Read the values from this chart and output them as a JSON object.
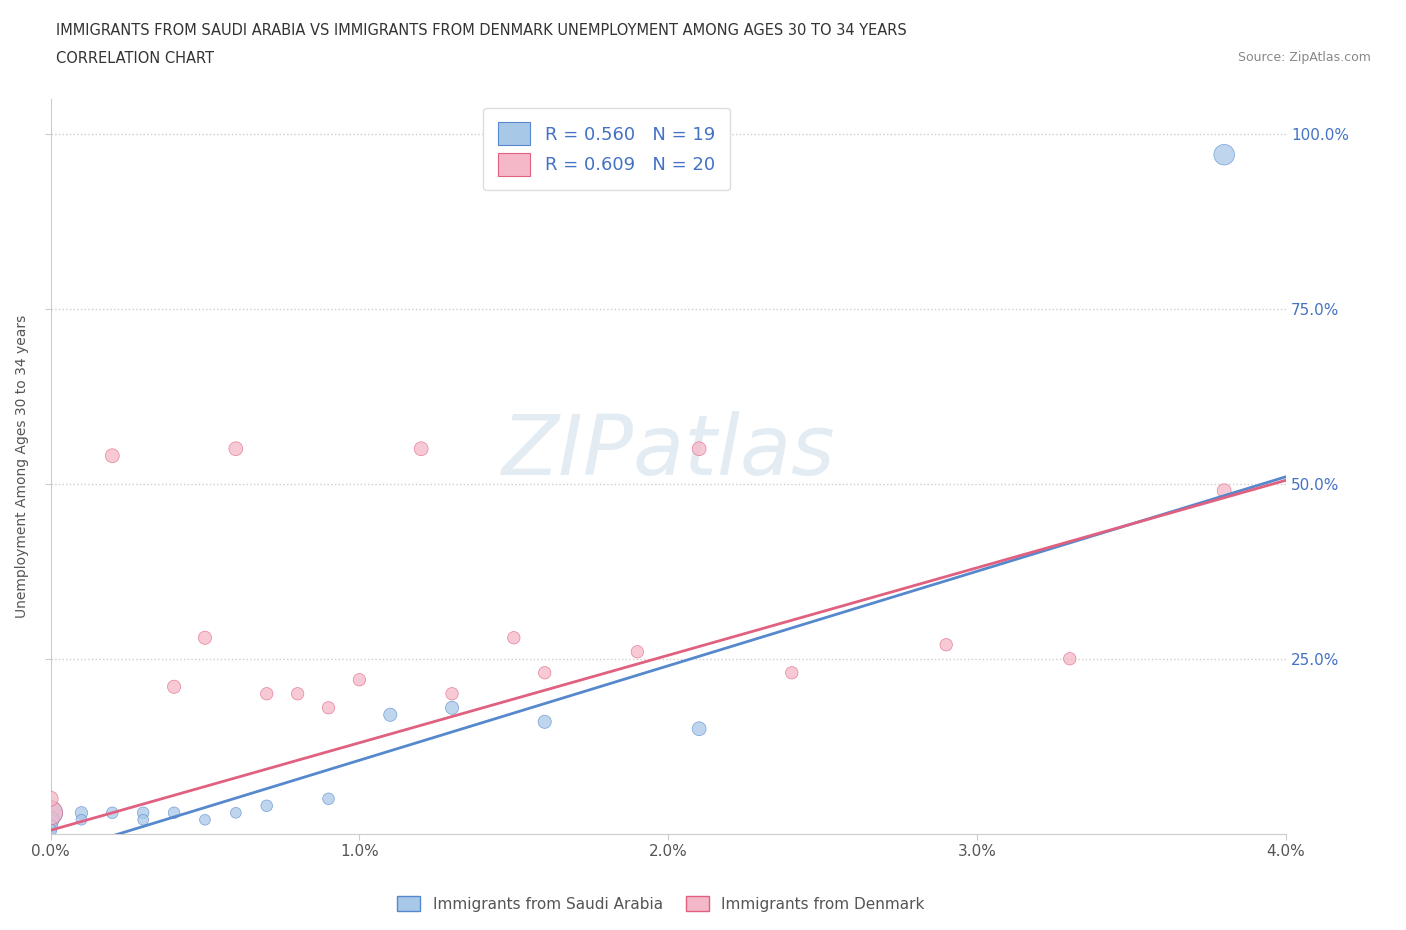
{
  "title_line1": "IMMIGRANTS FROM SAUDI ARABIA VS IMMIGRANTS FROM DENMARK UNEMPLOYMENT AMONG AGES 30 TO 34 YEARS",
  "title_line2": "CORRELATION CHART",
  "source_text": "Source: ZipAtlas.com",
  "ylabel": "Unemployment Among Ages 30 to 34 years",
  "xlim": [
    0.0,
    0.04
  ],
  "ylim": [
    0.0,
    1.05
  ],
  "xtick_labels": [
    "0.0%",
    "1.0%",
    "2.0%",
    "3.0%",
    "4.0%"
  ],
  "xtick_vals": [
    0.0,
    0.01,
    0.02,
    0.03,
    0.04
  ],
  "ytick_labels": [
    "25.0%",
    "50.0%",
    "75.0%",
    "100.0%"
  ],
  "ytick_vals": [
    0.25,
    0.5,
    0.75,
    1.0
  ],
  "grid_color": "#cccccc",
  "watermark_text": "ZIPatlas",
  "legend_r1": "R = 0.560   N = 19",
  "legend_r2": "R = 0.609   N = 20",
  "color_saudi": "#a8c8e8",
  "color_denmark": "#f5b8c8",
  "trendline_saudi_color": "#5588cc",
  "trendline_denmark_color": "#e06080",
  "saudi_scatter_x": [
    0.0,
    0.0,
    0.0,
    0.0,
    0.001,
    0.001,
    0.002,
    0.003,
    0.003,
    0.004,
    0.005,
    0.006,
    0.007,
    0.009,
    0.011,
    0.013,
    0.016,
    0.021,
    0.038
  ],
  "saudi_scatter_y": [
    0.03,
    0.02,
    0.01,
    0.005,
    0.03,
    0.02,
    0.03,
    0.03,
    0.02,
    0.03,
    0.02,
    0.03,
    0.04,
    0.05,
    0.17,
    0.18,
    0.16,
    0.15,
    0.97
  ],
  "denmark_scatter_x": [
    0.0,
    0.0,
    0.002,
    0.004,
    0.005,
    0.006,
    0.007,
    0.008,
    0.009,
    0.01,
    0.012,
    0.013,
    0.015,
    0.016,
    0.019,
    0.021,
    0.024,
    0.029,
    0.033,
    0.038
  ],
  "denmark_scatter_y": [
    0.03,
    0.05,
    0.54,
    0.21,
    0.28,
    0.55,
    0.2,
    0.2,
    0.18,
    0.22,
    0.55,
    0.2,
    0.28,
    0.23,
    0.26,
    0.55,
    0.23,
    0.27,
    0.25,
    0.49
  ],
  "saudi_bubble_sizes": [
    300,
    150,
    100,
    80,
    80,
    60,
    70,
    70,
    60,
    70,
    60,
    60,
    70,
    70,
    90,
    90,
    90,
    100,
    220
  ],
  "denmark_bubble_sizes": [
    300,
    120,
    100,
    90,
    90,
    100,
    80,
    80,
    80,
    80,
    100,
    80,
    80,
    80,
    80,
    100,
    80,
    80,
    80,
    100
  ],
  "trendline_saudi_slope": 13.5,
  "trendline_saudi_intercept": -0.03,
  "trendline_denmark_slope": 12.5,
  "trendline_denmark_intercept": 0.005
}
